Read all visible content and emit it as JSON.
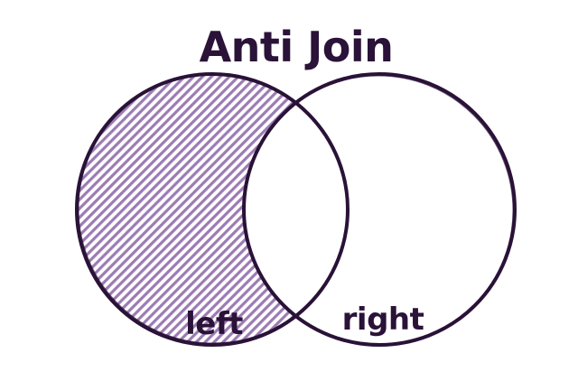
{
  "title": "Anti Join",
  "sets": {
    "left": {
      "label": "left",
      "highlighted": true
    },
    "right": {
      "label": "right",
      "highlighted": false
    }
  },
  "colors": {
    "outline": "#2a1238",
    "hatch": "#9c7cb4",
    "text": "#2a1238",
    "background": "#ffffff"
  }
}
